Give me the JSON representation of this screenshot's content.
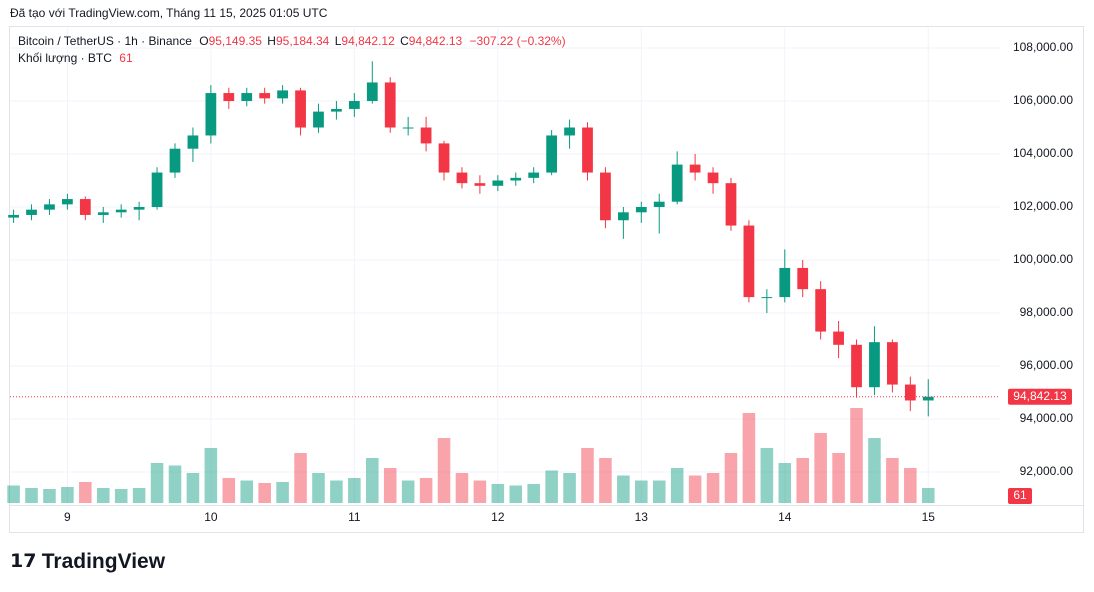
{
  "header": {
    "credit": "Đã tạo với TradingView.com, Tháng 11 15, 2025 01:05 UTC",
    "symbol": "Bitcoin / TetherUS · 1h · Binance",
    "ohlc": [
      {
        "key": "O",
        "text": "95,149.35"
      },
      {
        "key": "H",
        "text": "95,184.34"
      },
      {
        "key": "L",
        "text": "94,842.12"
      },
      {
        "key": "C",
        "text": "94,842.13"
      }
    ],
    "change": "−307.22 (−0.32%)",
    "volume_label": "Khối lượng · BTC"
  },
  "chart_data": {
    "type": "candlestick",
    "x": [
      8.625,
      8.75,
      8.875,
      9,
      9.125,
      9.25,
      9.375,
      9.5,
      9.625,
      9.75,
      9.875,
      10,
      10.125,
      10.25,
      10.375,
      10.5,
      10.625,
      10.75,
      10.875,
      11,
      11.125,
      11.25,
      11.375,
      11.5,
      11.625,
      11.75,
      11.875,
      12,
      12.125,
      12.25,
      12.375,
      12.5,
      12.625,
      12.75,
      12.875,
      13,
      13.125,
      13.25,
      13.375,
      13.5,
      13.625,
      13.75,
      13.875,
      14,
      14.125,
      14.25,
      14.375,
      14.5,
      14.625,
      14.75,
      14.875,
      15
    ],
    "open": [
      101600,
      101700,
      101900,
      102100,
      102300,
      101700,
      101800,
      101900,
      102000,
      103300,
      104200,
      104700,
      106300,
      106000,
      106300,
      106100,
      106400,
      105000,
      105600,
      105700,
      106000,
      106700,
      105000,
      105000,
      104400,
      103300,
      102900,
      102800,
      103000,
      103100,
      103300,
      104700,
      105000,
      103300,
      101500,
      101800,
      102000,
      102200,
      103600,
      103300,
      102900,
      101300,
      98600,
      98600,
      99700,
      98900,
      97300,
      96800,
      95200,
      96900,
      95300,
      94700
    ],
    "high": [
      101900,
      102100,
      102300,
      102500,
      102400,
      102000,
      102100,
      102200,
      103500,
      104400,
      105000,
      106600,
      106500,
      106500,
      106500,
      106600,
      106500,
      105900,
      106000,
      106300,
      107500,
      106900,
      105400,
      105400,
      104500,
      103500,
      103200,
      103200,
      103300,
      103500,
      104900,
      105300,
      105200,
      103500,
      102000,
      102200,
      102500,
      104100,
      104000,
      103500,
      103100,
      101500,
      98900,
      100400,
      100000,
      99200,
      97700,
      97000,
      97500,
      97000,
      95600,
      95500
    ],
    "low": [
      101400,
      101500,
      101700,
      101900,
      101500,
      101400,
      101600,
      101500,
      101900,
      103100,
      103700,
      104400,
      105700,
      105800,
      105900,
      105900,
      104700,
      104800,
      105300,
      105400,
      105900,
      104800,
      104700,
      104100,
      103000,
      102700,
      102500,
      102600,
      102800,
      102900,
      103200,
      104200,
      103000,
      101200,
      100800,
      101400,
      101000,
      102100,
      103000,
      102500,
      101100,
      98400,
      98000,
      98400,
      98600,
      97000,
      96300,
      94800,
      94900,
      95000,
      94300,
      94100
    ],
    "close": [
      101700,
      101900,
      102100,
      102300,
      101700,
      101800,
      101900,
      102000,
      103300,
      104200,
      104700,
      106300,
      106000,
      106300,
      106100,
      106400,
      105000,
      105600,
      105700,
      106000,
      106700,
      105000,
      105000,
      104400,
      103300,
      102900,
      102800,
      103000,
      103100,
      103300,
      104700,
      105000,
      103300,
      101500,
      101800,
      102000,
      102200,
      103600,
      103300,
      102900,
      101300,
      98600,
      98600,
      99700,
      98900,
      97300,
      96800,
      95200,
      96900,
      95300,
      94700,
      94842.13
    ],
    "volume": [
      350,
      300,
      280,
      320,
      420,
      300,
      280,
      300,
      800,
      750,
      600,
      1100,
      500,
      450,
      400,
      420,
      1000,
      600,
      450,
      500,
      900,
      700,
      450,
      500,
      1300,
      600,
      450,
      380,
      350,
      380,
      650,
      600,
      1100,
      900,
      550,
      450,
      450,
      700,
      550,
      600,
      1000,
      1800,
      1100,
      800,
      900,
      1400,
      1000,
      1900,
      1300,
      900,
      700,
      300
    ],
    "xlim": [
      8.6,
      15.5
    ],
    "xticks": [
      9,
      10,
      11,
      12,
      13,
      14,
      15
    ],
    "ylim": [
      90755,
      108755
    ],
    "yticks": [
      {
        "value": 92000,
        "label": "92,000.00"
      },
      {
        "value": 94000,
        "label": "94,000.00"
      },
      {
        "value": 96000,
        "label": "96,000.00"
      },
      {
        "value": 98000,
        "label": "98,000.00"
      },
      {
        "value": 100000,
        "label": "100,000.00"
      },
      {
        "value": 102000,
        "label": "102,000.00"
      },
      {
        "value": 104000,
        "label": "104,000.00"
      },
      {
        "value": 106000,
        "label": "106,000.00"
      },
      {
        "value": 108000,
        "label": "108,000.00"
      }
    ],
    "volume_lim": [
      0,
      2800
    ],
    "last_price": {
      "value": 94842.13,
      "label": "94,842.13"
    },
    "last_volume": 61,
    "up_color": "#089981",
    "down_color": "#f23645",
    "grid": true
  },
  "logo": "TradingView"
}
